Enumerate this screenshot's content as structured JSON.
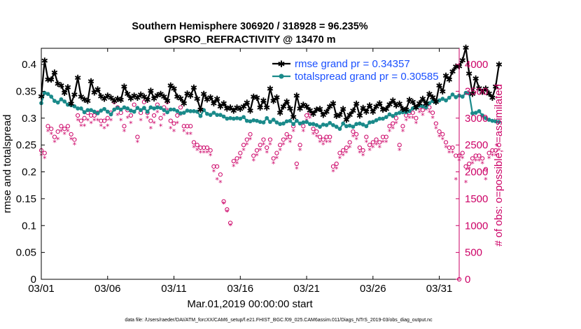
{
  "chart_data": {
    "type": "line",
    "title_line1": "Southern Hemisphere 306920 / 318928 = 96.235%",
    "title_line2": "GPSRO_REFRACTIVITY @ 13470 m",
    "xlabel": "Mar.01,2019 00:00:00 start",
    "ylabel": "rmse and totalspread",
    "y2label": "# of obs: o=possible; *=assimilated",
    "footnote": "data file: /Users/raeder/DAI/ATM_forcXX/CAM6_setup/f.e21.FHIST_BGC.f09_025.CAM6assim.011/Diags_NTrS_2019-03/obs_diag_output.nc",
    "xlim": [
      0,
      31.5
    ],
    "ylim": [
      0,
      0.43
    ],
    "y2lim": [
      0,
      4300
    ],
    "x_ticks": [
      0,
      5,
      10,
      15,
      20,
      25,
      30
    ],
    "x_tick_labels": [
      "03/01",
      "03/06",
      "03/11",
      "03/16",
      "03/21",
      "03/26",
      "03/31"
    ],
    "y_ticks": [
      0,
      0.05,
      0.1,
      0.15,
      0.2,
      0.25,
      0.3,
      0.35,
      0.4
    ],
    "y_tick_labels": [
      "0",
      "0.05",
      "0.1",
      "0.15",
      "0.2",
      "0.25",
      "0.3",
      "0.35",
      "0.4"
    ],
    "y2_ticks": [
      0,
      500,
      1000,
      1500,
      2000,
      2500,
      3000,
      3500,
      4000
    ],
    "y2_tick_labels": [
      "0",
      "500",
      "1000",
      "1500",
      "2000",
      "2500",
      "3000",
      "3500",
      "4000"
    ],
    "legend": [
      "rmse grand pr = 0.34357",
      "totalspread grand pr = 0.30585"
    ],
    "colors": {
      "rmse": "#000000",
      "spread": "#1a8a8a",
      "obs": "#cc0066",
      "legend_text": "#1a50ff"
    },
    "series_time_step_days": 0.25,
    "rmse": [
      0.341,
      0.407,
      0.372,
      0.372,
      0.385,
      0.364,
      0.361,
      0.347,
      0.358,
      0.327,
      0.344,
      0.375,
      0.34,
      0.335,
      0.332,
      0.369,
      0.348,
      0.354,
      0.341,
      0.336,
      0.342,
      0.338,
      0.332,
      0.336,
      0.334,
      0.359,
      0.345,
      0.337,
      0.342,
      0.338,
      0.344,
      0.34,
      0.334,
      0.351,
      0.337,
      0.343,
      0.345,
      0.34,
      0.332,
      0.361,
      0.355,
      0.34,
      0.337,
      0.328,
      0.346,
      0.342,
      0.357,
      0.336,
      0.316,
      0.345,
      0.335,
      0.339,
      0.328,
      0.336,
      0.322,
      0.328,
      0.318,
      0.32,
      0.314,
      0.32,
      0.317,
      0.322,
      0.329,
      0.314,
      0.34,
      0.338,
      0.32,
      0.333,
      0.32,
      0.355,
      0.332,
      0.339,
      0.31,
      0.322,
      0.331,
      0.318,
      0.302,
      0.342,
      0.318,
      0.325,
      0.322,
      0.315,
      0.308,
      0.316,
      0.317,
      0.306,
      0.312,
      0.322,
      0.328,
      0.304,
      0.306,
      0.317,
      0.297,
      0.306,
      0.314,
      0.327,
      0.305,
      0.319,
      0.312,
      0.324,
      0.312,
      0.322,
      0.328,
      0.316,
      0.317,
      0.326,
      0.333,
      0.324,
      0.327,
      0.317,
      0.316,
      0.334,
      0.33,
      0.32,
      0.328,
      0.336,
      0.327,
      0.345,
      0.339,
      0.33,
      0.361,
      0.35,
      0.379,
      0.372,
      0.387,
      0.396,
      0.397,
      0.408,
      0.431,
      0.383,
      0.345,
      0.374,
      0.356,
      0.349,
      0.355,
      0.346,
      0.338,
      0.359,
      0.4
    ],
    "totalspread": [
      0.328,
      0.347,
      0.345,
      0.34,
      0.332,
      0.329,
      0.335,
      0.331,
      0.325,
      0.324,
      0.322,
      0.318,
      0.318,
      0.311,
      0.315,
      0.315,
      0.312,
      0.309,
      0.314,
      0.317,
      0.312,
      0.307,
      0.316,
      0.319,
      0.316,
      0.32,
      0.318,
      0.314,
      0.312,
      0.319,
      0.315,
      0.319,
      0.312,
      0.32,
      0.318,
      0.32,
      0.319,
      0.315,
      0.311,
      0.316,
      0.316,
      0.313,
      0.309,
      0.31,
      0.314,
      0.313,
      0.313,
      0.312,
      0.304,
      0.315,
      0.308,
      0.306,
      0.31,
      0.306,
      0.306,
      0.303,
      0.299,
      0.3,
      0.299,
      0.3,
      0.299,
      0.302,
      0.295,
      0.294,
      0.296,
      0.295,
      0.293,
      0.292,
      0.3,
      0.293,
      0.297,
      0.292,
      0.289,
      0.29,
      0.294,
      0.295,
      0.289,
      0.295,
      0.29,
      0.292,
      0.293,
      0.289,
      0.289,
      0.287,
      0.284,
      0.288,
      0.287,
      0.291,
      0.287,
      0.284,
      0.28,
      0.29,
      0.285,
      0.286,
      0.284,
      0.289,
      0.29,
      0.288,
      0.285,
      0.292,
      0.293,
      0.296,
      0.299,
      0.299,
      0.302,
      0.307,
      0.304,
      0.308,
      0.31,
      0.311,
      0.311,
      0.313,
      0.318,
      0.32,
      0.323,
      0.322,
      0.32,
      0.328,
      0.332,
      0.33,
      0.333,
      0.336,
      0.333,
      0.338,
      0.344,
      0.339,
      0.342,
      0.34,
      0.347,
      0.346,
      0.309,
      0.31,
      0.313,
      0.305,
      0.3,
      0.297,
      0.295,
      0.294,
      0.293
    ],
    "obs_possible": [
      2400,
      2350,
      2850,
      2800,
      2650,
      2750,
      2850,
      2800,
      2850,
      2700,
      2600,
      3050,
      2950,
      3000,
      3100,
      3050,
      3050,
      3100,
      2950,
      2950,
      3000,
      3100,
      3300,
      3200,
      3100,
      2850,
      3150,
      3050,
      3250,
      2650,
      3100,
      3300,
      3100,
      2950,
      3050,
      3250,
      3000,
      3200,
      3300,
      2950,
      2900,
      3050,
      3200,
      2850,
      2850,
      2850,
      2550,
      2500,
      2450,
      2450,
      2450,
      2400,
      2100,
      2100,
      1950,
      1450,
      1300,
      1050,
      2200,
      2250,
      2350,
      2500,
      2600,
      2700,
      2300,
      2400,
      2500,
      2600,
      2450,
      2600,
      2250,
      2350,
      2500,
      2600,
      2700,
      2650,
      2850,
      2150,
      2500,
      2850,
      3050,
      3100,
      2800,
      2750,
      2650,
      2600,
      2650,
      2650,
      2100,
      2150,
      2350,
      2400,
      2450,
      2550,
      2750,
      2700,
      2450,
      2400,
      2650,
      2500,
      2550,
      2600,
      2550,
      2650,
      2650,
      2850,
      2900,
      3000,
      2500,
      2850,
      3050,
      3100,
      3100,
      3000,
      3200,
      3150,
      3250,
      3200,
      3100,
      2900,
      2750,
      2700,
      2550,
      2450,
      2450,
      2300,
      2300,
      2350,
      2100,
      2150,
      2250,
      2300,
      2300,
      2250,
      2050,
      2350,
      2400,
      2400,
      2500
    ],
    "obs_assimilated": [
      2300,
      2250,
      2750,
      2700,
      2550,
      2600,
      2750,
      2700,
      2750,
      2600,
      2500,
      2950,
      2850,
      2850,
      2950,
      2900,
      2950,
      2950,
      2850,
      2800,
      2850,
      2950,
      3150,
      3050,
      2950,
      2750,
      3000,
      2900,
      3100,
      2550,
      2950,
      3150,
      3000,
      2800,
      2900,
      3100,
      2850,
      3050,
      3150,
      2800,
      2750,
      2900,
      3050,
      2750,
      2700,
      2700,
      2450,
      2400,
      2350,
      2350,
      2350,
      2300,
      2000,
      1850,
      1800,
      1400,
      1250,
      1000,
      2100,
      2150,
      2250,
      2400,
      2500,
      2600,
      2200,
      2300,
      2400,
      2500,
      2350,
      2500,
      2150,
      2250,
      2400,
      2500,
      2600,
      2550,
      2750,
      2050,
      2400,
      2750,
      2950,
      3000,
      2700,
      2650,
      2550,
      2500,
      2550,
      2550,
      2000,
      2050,
      2250,
      2300,
      2350,
      2450,
      2650,
      2600,
      2350,
      2300,
      2550,
      2400,
      2450,
      2500,
      2450,
      2550,
      2550,
      2750,
      2800,
      2900,
      2400,
      2750,
      2950,
      3000,
      3000,
      2900,
      3100,
      3050,
      3150,
      3100,
      3000,
      2800,
      2650,
      2600,
      2450,
      2350,
      2350,
      1850,
      2200,
      2250,
      1800,
      2050,
      2150,
      2200,
      2200,
      2150,
      1850,
      2250,
      2300,
      2300,
      2400
    ]
  }
}
